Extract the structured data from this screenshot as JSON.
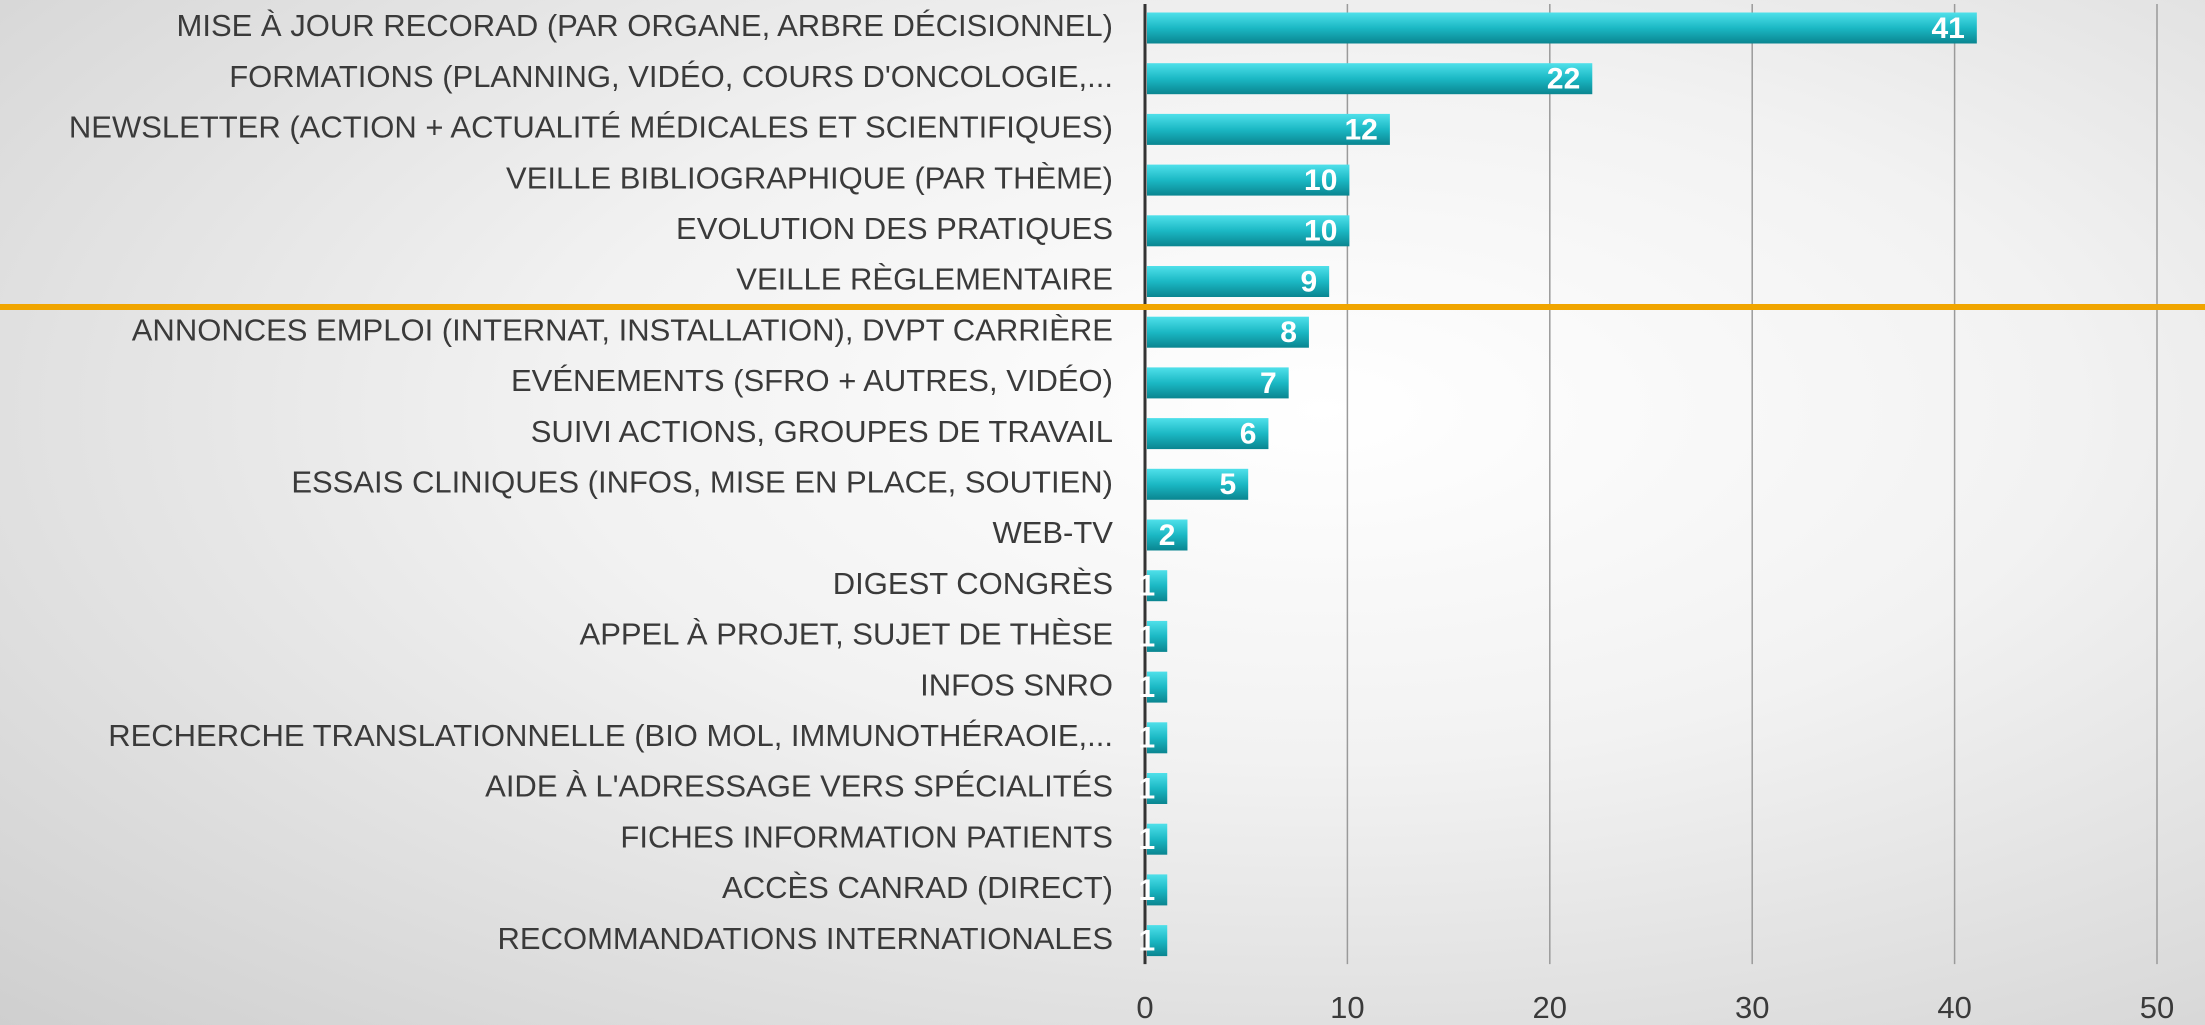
{
  "chart_data": {
    "type": "bar",
    "orientation": "horizontal",
    "categories": [
      "MISE À JOUR RECORAD (PAR ORGANE, ARBRE DÉCISIONNEL)",
      "FORMATIONS (PLANNING, VIDÉO, COURS D'ONCOLOGIE,...",
      "NEWSLETTER (ACTION + ACTUALITÉ MÉDICALES ET SCIENTIFIQUES)",
      "VEILLE BIBLIOGRAPHIQUE (PAR THÈME)",
      "EVOLUTION DES PRATIQUES",
      "VEILLE RÈGLEMENTAIRE",
      "ANNONCES EMPLOI (INTERNAT, INSTALLATION), DVPT CARRIÈRE",
      "EVÉNEMENTS (SFRO + AUTRES, VIDÉO)",
      "SUIVI ACTIONS, GROUPES DE TRAVAIL",
      "ESSAIS CLINIQUES (INFOS, MISE EN PLACE, SOUTIEN)",
      "WEB-TV",
      "DIGEST CONGRÈS",
      "APPEL À PROJET, SUJET DE THÈSE",
      "INFOS SNRO",
      "RECHERCHE TRANSLATIONNELLE (BIO MOL, IMMUNOTHÉRAOIE,...",
      "AIDE À L'ADRESSAGE VERS SPÉCIALITÉS",
      "FICHES INFORMATION PATIENTS",
      "ACCÈS CANRAD (DIRECT)",
      "RECOMMANDATIONS INTERNATIONALES"
    ],
    "values": [
      41,
      22,
      12,
      10,
      10,
      9,
      8,
      7,
      6,
      5,
      2,
      1,
      1,
      1,
      1,
      1,
      1,
      1,
      1
    ],
    "color": "#1bb8c4",
    "xlim": [
      0,
      50
    ],
    "xticks": [
      0,
      10,
      20,
      30,
      40,
      50
    ],
    "grid": true
  }
}
